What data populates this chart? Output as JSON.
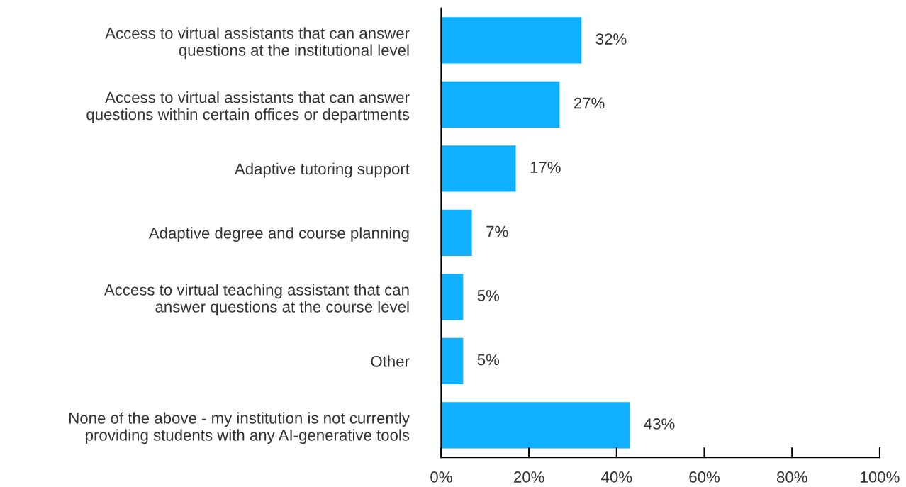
{
  "chart_data": {
    "type": "bar",
    "orientation": "horizontal",
    "categories": [
      "Access to virtual assistants that can answer\nquestions at the institutional level",
      "Access to virtual assistants that can answer\nquestions within certain offices or departments",
      "Adaptive tutoring support",
      "Adaptive degree and course planning",
      "Access to virtual teaching assistant that can\nanswer questions at the course level",
      "Other",
      "None of the above - my institution is not currently\nproviding students with any AI-generative tools"
    ],
    "values": [
      32,
      27,
      17,
      7,
      5,
      5,
      43
    ],
    "value_labels": [
      "32%",
      "27%",
      "17%",
      "7%",
      "5%",
      "5%",
      "43%"
    ],
    "color": "#0fb0ff",
    "xlim": [
      0,
      100
    ],
    "xticks": [
      {
        "value": 0,
        "label": "0%"
      },
      {
        "value": 20,
        "label": "20%"
      },
      {
        "value": 40,
        "label": "40%"
      },
      {
        "value": 60,
        "label": "60%"
      },
      {
        "value": 80,
        "label": "80%"
      },
      {
        "value": 100,
        "label": "100%"
      }
    ],
    "grid": false,
    "legend": false
  }
}
